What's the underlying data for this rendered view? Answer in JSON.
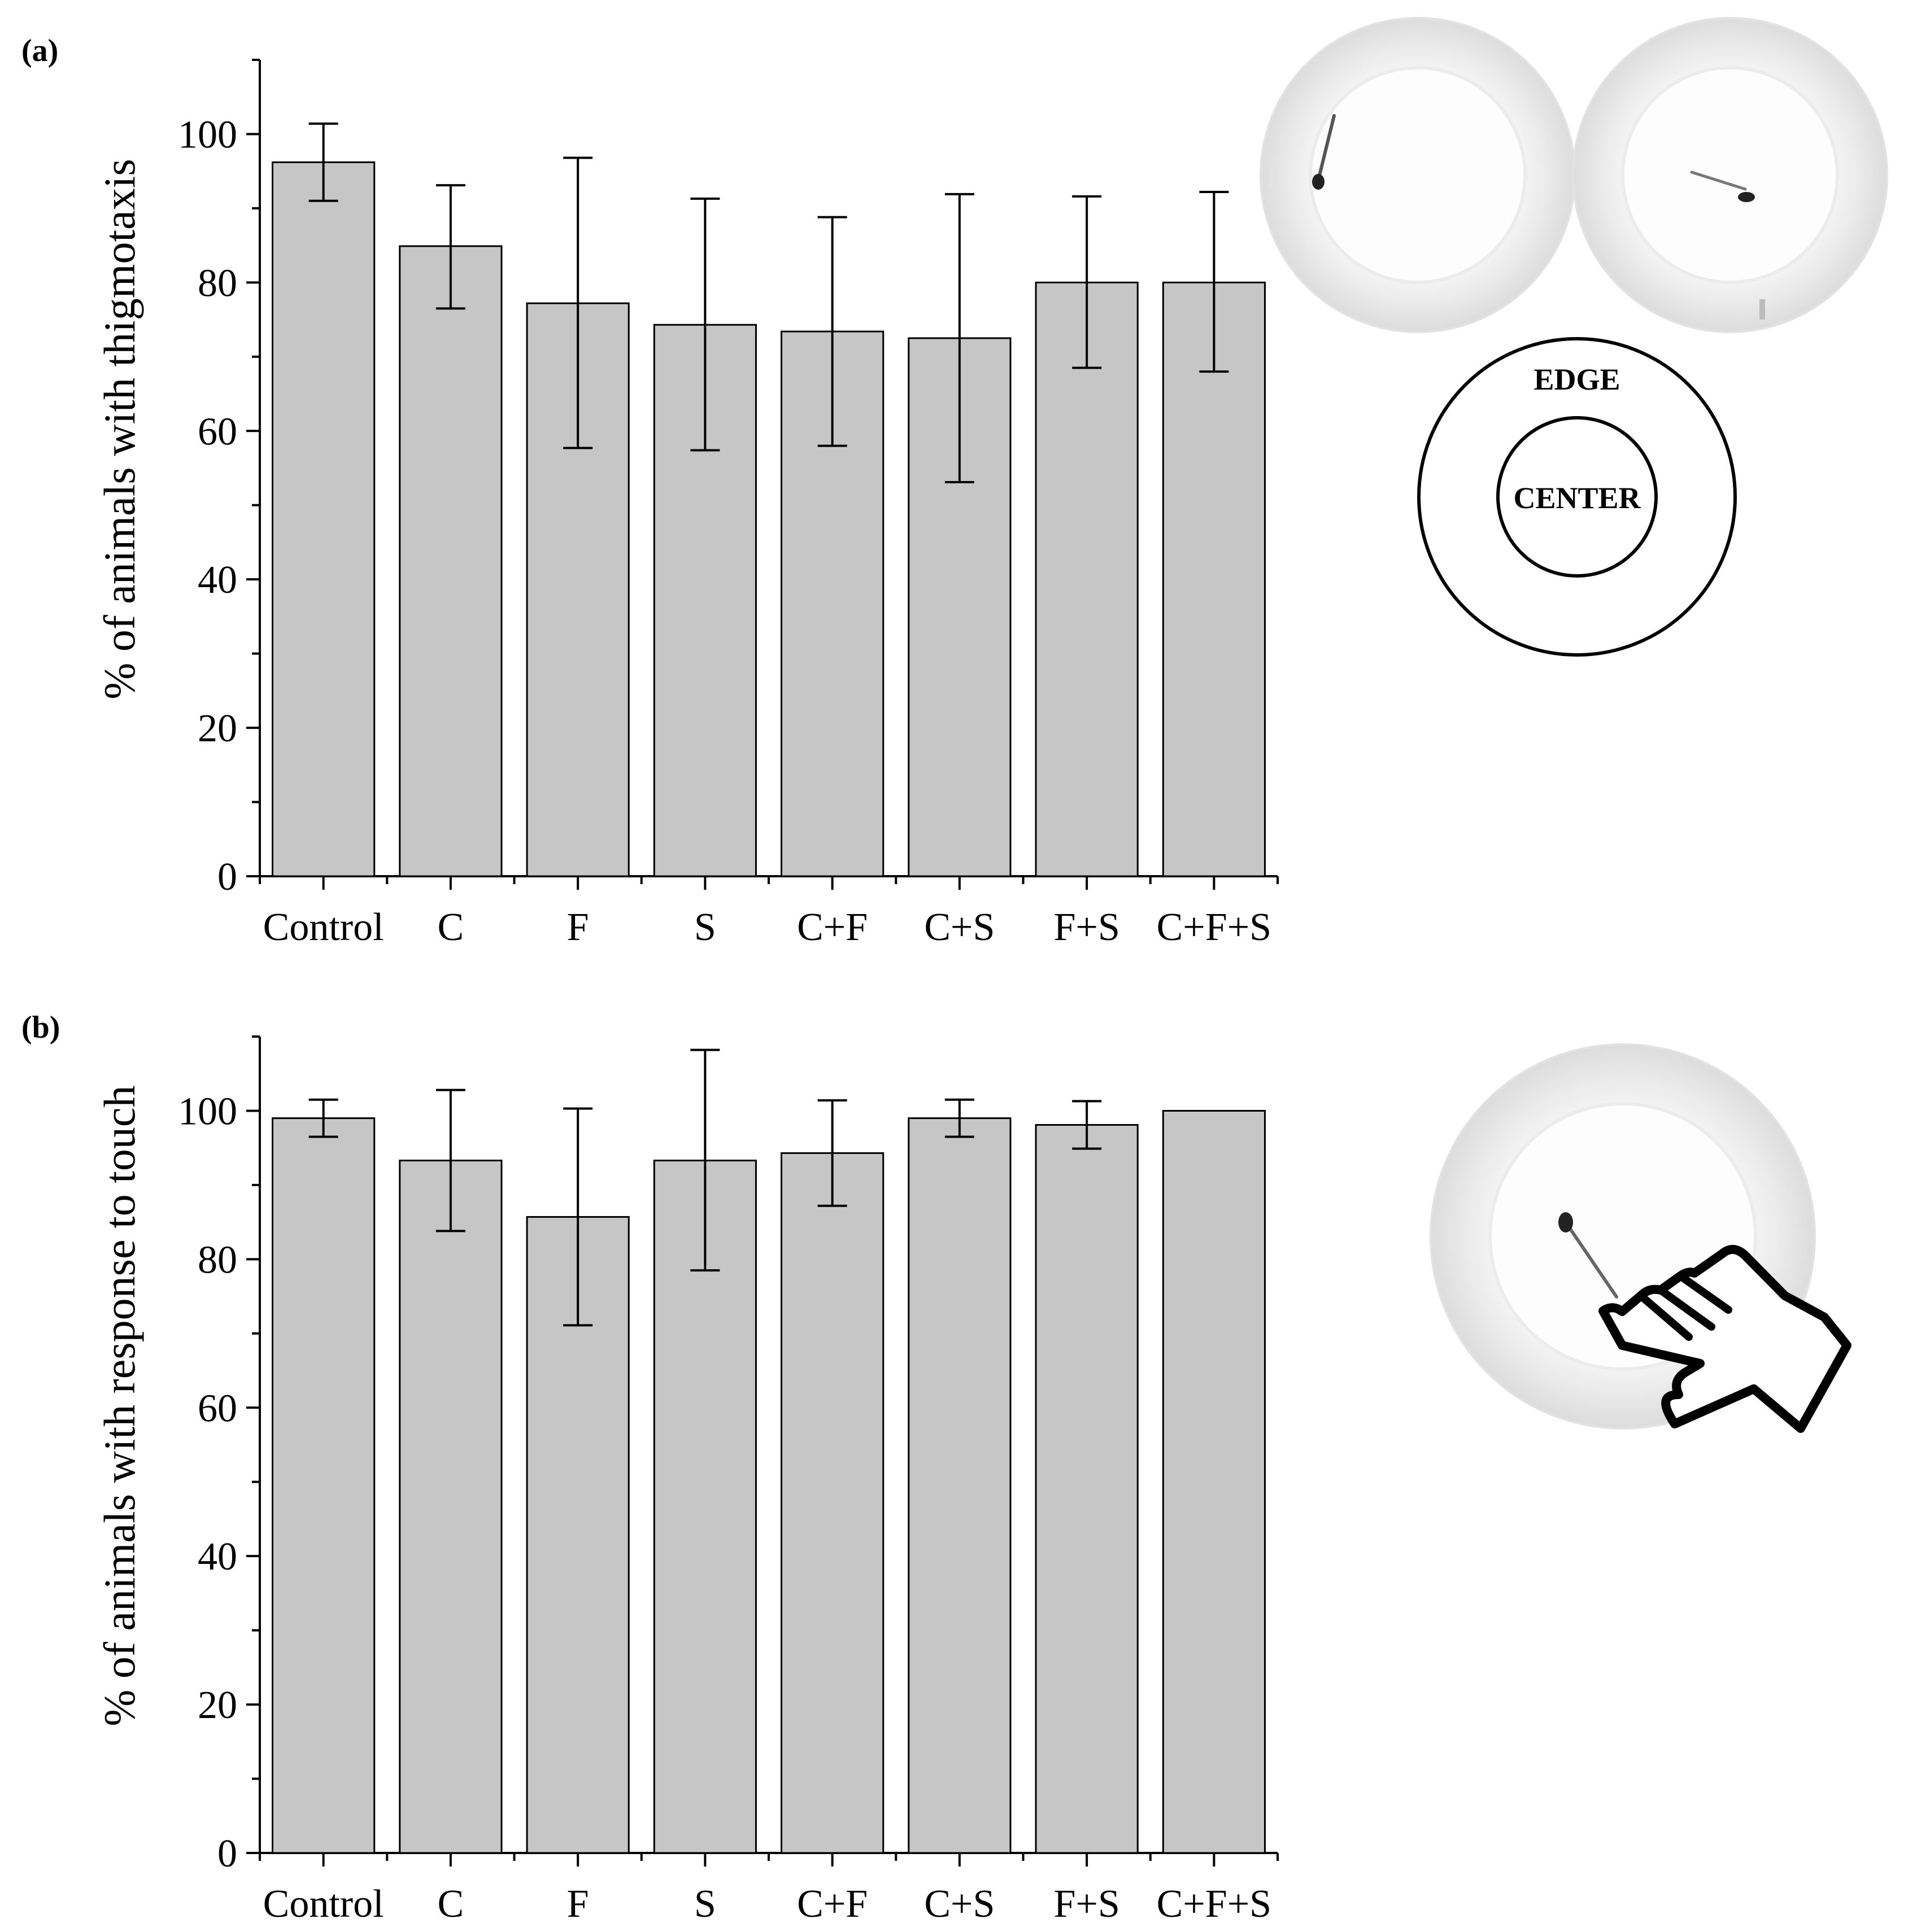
{
  "panels": {
    "a": {
      "label": "(a)"
    },
    "b": {
      "label": "(b)"
    }
  },
  "diagram": {
    "edge_label": "EDGE",
    "center_label": "CENTER"
  },
  "colors": {
    "bar_fill": "#c6c6c6",
    "bar_stroke": "#000000",
    "axis": "#000000"
  },
  "icons": {
    "petri_dish": "petri-dish-photo-icon",
    "hand": "hand-pointer-icon"
  },
  "chart_data": [
    {
      "id": "a",
      "type": "bar",
      "categories": [
        "Control",
        "C",
        "F",
        "S",
        "C+F",
        "C+S",
        "F+S",
        "C+F+S"
      ],
      "values": [
        96.2,
        84.9,
        77.2,
        74.3,
        73.4,
        72.5,
        80.0,
        80.0
      ],
      "error_low": [
        91.0,
        76.5,
        57.7,
        57.4,
        58.0,
        53.1,
        68.5,
        68.0
      ],
      "error_high": [
        101.4,
        93.1,
        96.8,
        91.3,
        88.8,
        91.9,
        91.6,
        92.2
      ],
      "title": "",
      "xlabel": "",
      "ylabel": "% of animals with thigmotaxis",
      "ylim": [
        0,
        110
      ],
      "yticks": [
        0,
        20,
        40,
        60,
        80,
        100
      ]
    },
    {
      "id": "b",
      "type": "bar",
      "categories": [
        "Control",
        "C",
        "F",
        "S",
        "C+F",
        "C+S",
        "F+S",
        "C+F+S"
      ],
      "values": [
        99.0,
        93.3,
        85.7,
        93.3,
        94.3,
        99.0,
        98.1,
        100.0
      ],
      "error_low": [
        96.5,
        83.8,
        71.1,
        78.5,
        87.2,
        96.5,
        94.9,
        100.0
      ],
      "error_high": [
        101.5,
        102.8,
        100.3,
        108.2,
        101.4,
        101.5,
        101.3,
        100.0
      ],
      "title": "",
      "xlabel": "",
      "ylabel": "% of animals with response to touch",
      "ylim": [
        0,
        110
      ],
      "yticks": [
        0,
        20,
        40,
        60,
        80,
        100
      ]
    }
  ]
}
